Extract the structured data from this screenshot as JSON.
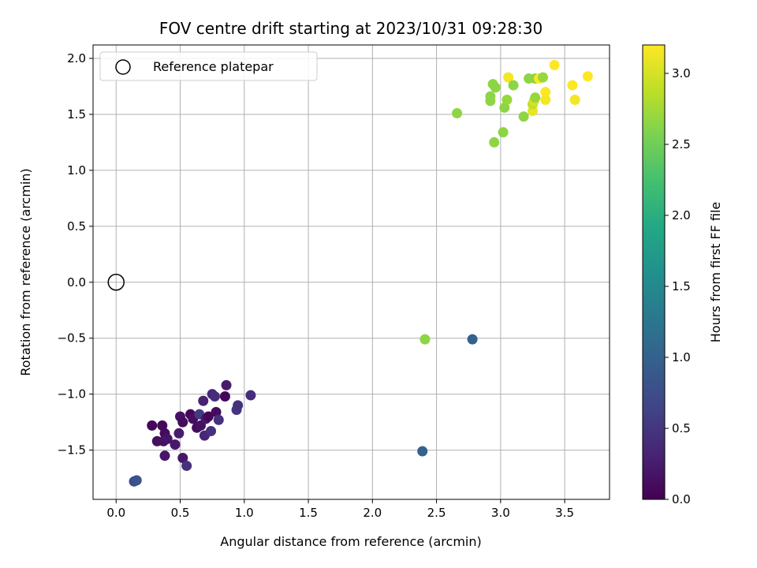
{
  "chart_data": {
    "type": "scatter",
    "title": "FOV centre drift starting at 2023/10/31 09:28:30",
    "xlabel": "Angular distance from reference (arcmin)",
    "ylabel": "Rotation from reference (arcmin)",
    "xlim": [
      -0.18,
      3.85
    ],
    "ylim": [
      -1.94,
      2.12
    ],
    "xticks": [
      0.0,
      0.5,
      1.0,
      1.5,
      2.0,
      2.5,
      3.0,
      3.5
    ],
    "xtick_labels": [
      "0.0",
      "0.5",
      "1.0",
      "1.5",
      "2.0",
      "2.5",
      "3.0",
      "3.5"
    ],
    "yticks": [
      -1.5,
      -1.0,
      -0.5,
      0.0,
      0.5,
      1.0,
      1.5,
      2.0
    ],
    "ytick_labels": [
      "−1.5",
      "−1.0",
      "−0.5",
      "0.0",
      "0.5",
      "1.0",
      "1.5",
      "2.0"
    ],
    "grid": true,
    "legend": {
      "placement": "top-left",
      "entries": [
        "Reference platepar"
      ]
    },
    "reference_point": {
      "x": 0.0,
      "y": 0.0,
      "label": "Reference platepar"
    },
    "colorbar": {
      "label": "Hours from first FF file",
      "colormap": "viridis",
      "range": [
        0.0,
        3.2
      ],
      "ticks": [
        0.0,
        0.5,
        1.0,
        1.5,
        2.0,
        2.5,
        3.0
      ],
      "tick_labels": [
        "0.0",
        "0.5",
        "1.0",
        "1.5",
        "2.0",
        "2.5",
        "3.0"
      ]
    },
    "points": [
      {
        "x": 0.28,
        "y": -1.28,
        "c": 0.05
      },
      {
        "x": 0.36,
        "y": -1.28,
        "c": 0.08
      },
      {
        "x": 0.38,
        "y": -1.35,
        "c": 0.1
      },
      {
        "x": 0.32,
        "y": -1.42,
        "c": 0.12
      },
      {
        "x": 0.37,
        "y": -1.42,
        "c": 0.15
      },
      {
        "x": 0.4,
        "y": -1.4,
        "c": 0.18
      },
      {
        "x": 0.38,
        "y": -1.55,
        "c": 0.2
      },
      {
        "x": 0.46,
        "y": -1.45,
        "c": 0.22
      },
      {
        "x": 0.49,
        "y": -1.35,
        "c": 0.25
      },
      {
        "x": 0.5,
        "y": -1.2,
        "c": 0.15
      },
      {
        "x": 0.52,
        "y": -1.25,
        "c": 0.1
      },
      {
        "x": 0.52,
        "y": -1.57,
        "c": 0.2
      },
      {
        "x": 0.55,
        "y": -1.64,
        "c": 0.45
      },
      {
        "x": 0.58,
        "y": -1.18,
        "c": 0.05
      },
      {
        "x": 0.6,
        "y": -1.22,
        "c": 0.12
      },
      {
        "x": 0.63,
        "y": -1.3,
        "c": 0.1
      },
      {
        "x": 0.65,
        "y": -1.18,
        "c": 0.55
      },
      {
        "x": 0.66,
        "y": -1.28,
        "c": 0.15
      },
      {
        "x": 0.68,
        "y": -1.06,
        "c": 0.3
      },
      {
        "x": 0.69,
        "y": -1.37,
        "c": 0.35
      },
      {
        "x": 0.7,
        "y": -1.22,
        "c": 0.2
      },
      {
        "x": 0.72,
        "y": -1.2,
        "c": 0.05
      },
      {
        "x": 0.74,
        "y": -1.33,
        "c": 0.45
      },
      {
        "x": 0.75,
        "y": -1.0,
        "c": 0.35
      },
      {
        "x": 0.77,
        "y": -1.02,
        "c": 0.4
      },
      {
        "x": 0.78,
        "y": -1.16,
        "c": 0.1
      },
      {
        "x": 0.8,
        "y": -1.23,
        "c": 0.45
      },
      {
        "x": 0.85,
        "y": -1.02,
        "c": 0.05
      },
      {
        "x": 0.86,
        "y": -0.92,
        "c": 0.25
      },
      {
        "x": 0.94,
        "y": -1.14,
        "c": 0.5
      },
      {
        "x": 0.95,
        "y": -1.1,
        "c": 0.45
      },
      {
        "x": 1.05,
        "y": -1.01,
        "c": 0.4
      },
      {
        "x": 0.14,
        "y": -1.78,
        "c": 0.75
      },
      {
        "x": 0.16,
        "y": -1.77,
        "c": 0.8
      },
      {
        "x": 2.39,
        "y": -1.51,
        "c": 1.0
      },
      {
        "x": 2.78,
        "y": -0.51,
        "c": 1.0
      },
      {
        "x": 2.41,
        "y": -0.51,
        "c": 2.65
      },
      {
        "x": 2.66,
        "y": 1.51,
        "c": 2.65
      },
      {
        "x": 2.92,
        "y": 1.62,
        "c": 2.65
      },
      {
        "x": 2.92,
        "y": 1.66,
        "c": 2.65
      },
      {
        "x": 2.94,
        "y": 1.77,
        "c": 2.65
      },
      {
        "x": 2.96,
        "y": 1.74,
        "c": 2.65
      },
      {
        "x": 2.95,
        "y": 1.25,
        "c": 2.65
      },
      {
        "x": 3.02,
        "y": 1.34,
        "c": 2.65
      },
      {
        "x": 3.03,
        "y": 1.56,
        "c": 2.65
      },
      {
        "x": 3.05,
        "y": 1.63,
        "c": 2.7
      },
      {
        "x": 3.06,
        "y": 1.83,
        "c": 3.15
      },
      {
        "x": 3.1,
        "y": 1.76,
        "c": 2.65
      },
      {
        "x": 3.18,
        "y": 1.48,
        "c": 2.65
      },
      {
        "x": 3.22,
        "y": 1.82,
        "c": 2.65
      },
      {
        "x": 3.25,
        "y": 1.53,
        "c": 3.1
      },
      {
        "x": 3.25,
        "y": 1.59,
        "c": 2.9
      },
      {
        "x": 3.26,
        "y": 1.62,
        "c": 3.0
      },
      {
        "x": 3.27,
        "y": 1.82,
        "c": 2.65
      },
      {
        "x": 3.27,
        "y": 1.65,
        "c": 2.7
      },
      {
        "x": 3.3,
        "y": 1.82,
        "c": 3.2
      },
      {
        "x": 3.33,
        "y": 1.83,
        "c": 2.7
      },
      {
        "x": 3.35,
        "y": 1.63,
        "c": 3.15
      },
      {
        "x": 3.35,
        "y": 1.7,
        "c": 3.2
      },
      {
        "x": 3.42,
        "y": 1.94,
        "c": 3.2
      },
      {
        "x": 3.56,
        "y": 1.76,
        "c": 3.2
      },
      {
        "x": 3.58,
        "y": 1.63,
        "c": 3.15
      },
      {
        "x": 3.68,
        "y": 1.84,
        "c": 3.2
      }
    ]
  }
}
